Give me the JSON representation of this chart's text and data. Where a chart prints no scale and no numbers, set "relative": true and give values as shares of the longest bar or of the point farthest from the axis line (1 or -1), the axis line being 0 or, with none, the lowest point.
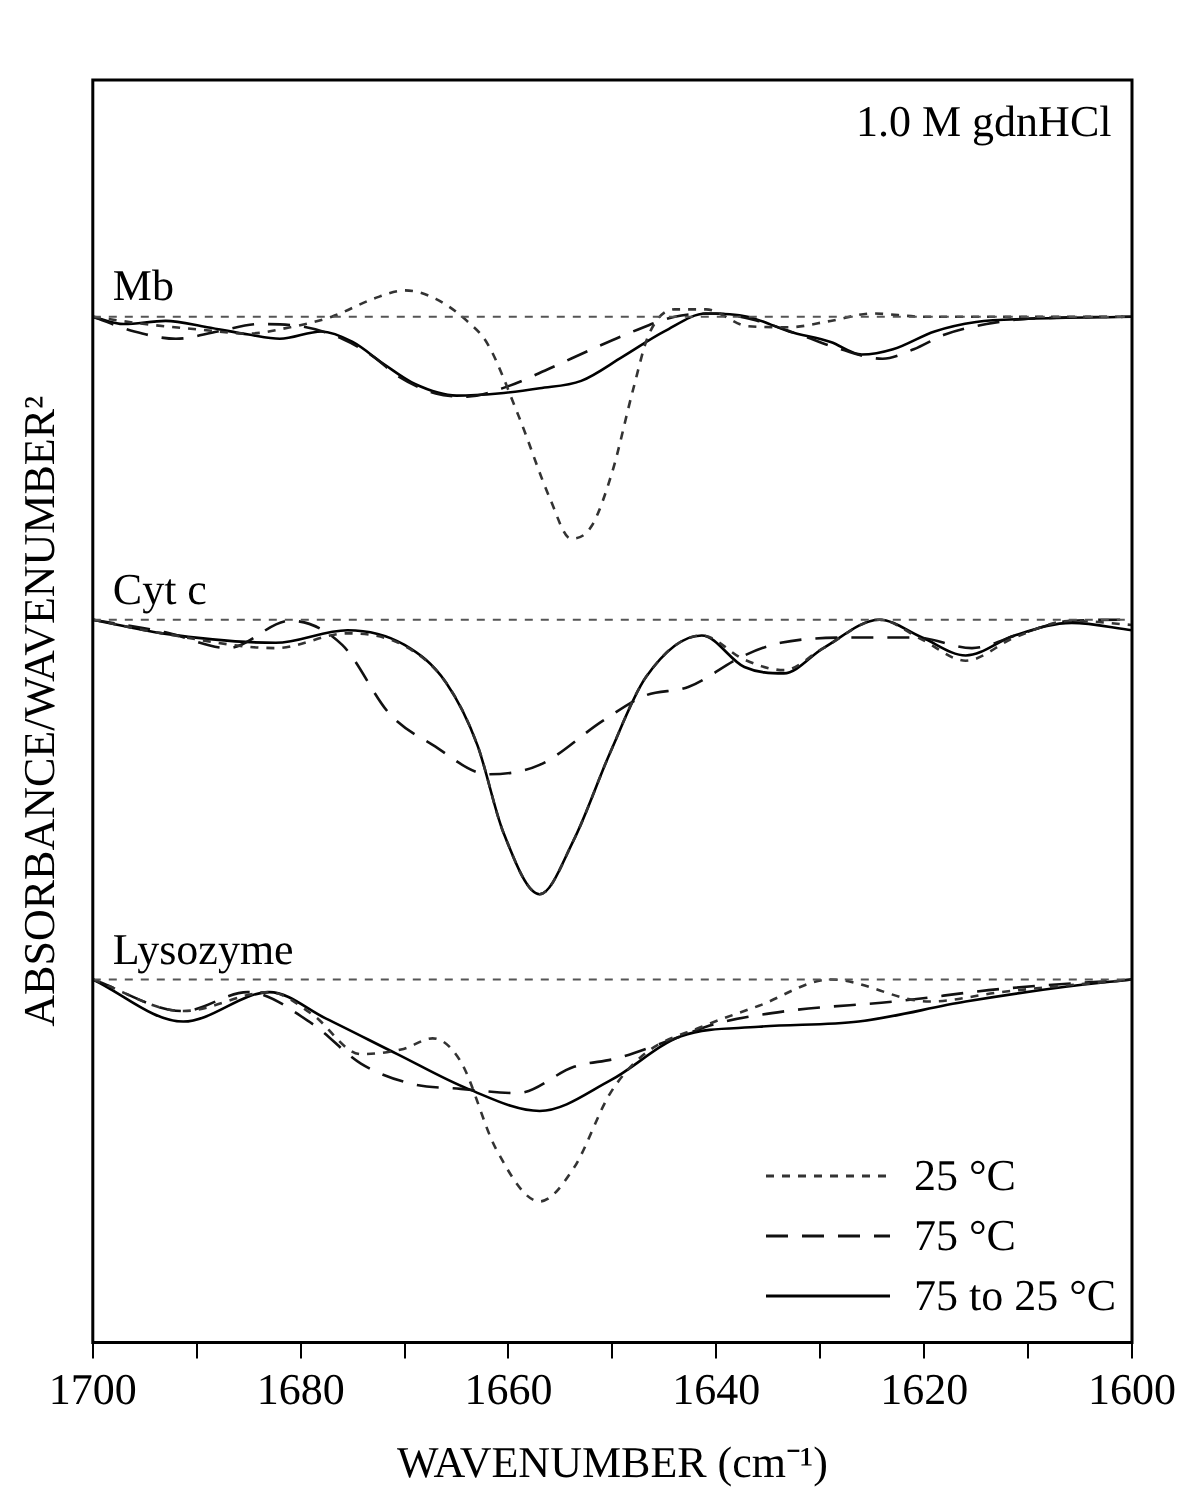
{
  "chart_data": {
    "type": "line",
    "relative": true,
    "xlabel": "WAVENUMBER (cm⁻¹)",
    "ylabel": "ABSORBANCE/WAVENUMBER²",
    "xlim": [
      1700,
      1600
    ],
    "xticks": [
      1700,
      {
        "value": 1690,
        "label": null
      },
      1680,
      {
        "value": 1670,
        "label": null
      },
      1660,
      {
        "value": 1650,
        "label": null
      },
      1640,
      {
        "value": 1630,
        "label": null
      },
      1620,
      {
        "value": 1610,
        "label": null
      },
      1600
    ],
    "legend": "bottom right",
    "marker": "none",
    "annotations": [
      "1.0 M gdnHCl"
    ],
    "ref_lines": [
      {
        "axis": "y",
        "value": 0.975,
        "label": "Mb",
        "line_style": "dotted",
        "color": "#555555"
      },
      {
        "axis": "y",
        "value": 0.687,
        "label": "Cyt c",
        "line_style": "dotted",
        "color": "#555555"
      },
      {
        "axis": "y",
        "value": 0.345,
        "label": "Lysozyme",
        "line_style": "dotted",
        "color": "#555555"
      }
    ],
    "series": [
      {
        "name": "25 °C",
        "color": "#333333",
        "line_style": "dotted",
        "x": [
          1700,
          1695,
          1690,
          1685,
          1681,
          1677,
          1673,
          1670,
          1667,
          1664,
          1662,
          1659,
          1656,
          1654,
          1652,
          1650,
          1648,
          1646.5,
          1644,
          1641,
          1637,
          1633,
          1629,
          1625,
          1620,
          1610,
          1600
        ],
        "values": [
          0.975,
          0.968,
          0.963,
          0.959,
          0.965,
          0.975,
          0.992,
          1.0,
          0.992,
          0.971,
          0.949,
          0.88,
          0.802,
          0.764,
          0.776,
          0.828,
          0.906,
          0.958,
          0.982,
          0.982,
          0.966,
          0.965,
          0.971,
          0.978,
          0.975,
          0.975,
          0.975
        ]
      },
      {
        "name": "75 °C",
        "color": "#111111",
        "line_style": "dashed",
        "x": [
          1700,
          1696,
          1692,
          1688,
          1684,
          1680,
          1676,
          1673,
          1670.7,
          1667,
          1664,
          1660,
          1656,
          1652,
          1648,
          1644,
          1640,
          1636,
          1632,
          1628,
          1624,
          1621,
          1618,
          1614,
          1610,
          1600
        ],
        "values": [
          0.975,
          0.961,
          0.954,
          0.961,
          0.968,
          0.966,
          0.954,
          0.937,
          0.919,
          0.902,
          0.899,
          0.909,
          0.926,
          0.944,
          0.961,
          0.975,
          0.978,
          0.971,
          0.958,
          0.944,
          0.935,
          0.944,
          0.958,
          0.968,
          0.973,
          0.975
        ]
      },
      {
        "name": "75 to 25 °C",
        "color": "#000000",
        "line_style": "solid",
        "x": [
          1700,
          1697,
          1693,
          1689,
          1685,
          1682,
          1678,
          1675,
          1672,
          1669,
          1665,
          1661,
          1657,
          1653,
          1649,
          1645,
          1641,
          1637,
          1633,
          1629,
          1626,
          1623,
          1619,
          1615,
          1610,
          1600
        ],
        "values": [
          0.975,
          0.968,
          0.971,
          0.965,
          0.958,
          0.954,
          0.961,
          0.951,
          0.93,
          0.911,
          0.9,
          0.902,
          0.907,
          0.914,
          0.937,
          0.961,
          0.978,
          0.975,
          0.961,
          0.951,
          0.939,
          0.944,
          0.961,
          0.97,
          0.973,
          0.975
        ]
      },
      {
        "color": "#333333",
        "line_style": "dotted",
        "x": [
          1700,
          1693.3,
          1682.4,
          1675.5,
          1670,
          1666,
          1663,
          1660.5,
          1657,
          1653.7,
          1650.2,
          1646.8,
          1641.4,
          1637.3,
          1633.5,
          1629.7,
          1624.3,
          1620.2,
          1616,
          1611.3,
          1605.8,
          1600
        ],
        "values": [
          0.687,
          0.674,
          0.66,
          0.674,
          0.662,
          0.627,
          0.568,
          0.485,
          0.426,
          0.478,
          0.561,
          0.632,
          0.672,
          0.649,
          0.639,
          0.66,
          0.687,
          0.668,
          0.648,
          0.67,
          0.686,
          0.682
        ]
      },
      {
        "color": "#111111",
        "line_style": "dashed",
        "x": [
          1700,
          1693,
          1687,
          1681,
          1676,
          1671.4,
          1667.3,
          1661.9,
          1657,
          1650.9,
          1646.8,
          1642.7,
          1637.3,
          1633.8,
          1626.3,
          1620.8,
          1615.4,
          1610.6,
          1605.8,
          1600
        ],
        "values": [
          0.687,
          0.675,
          0.66,
          0.686,
          0.663,
          0.597,
          0.568,
          0.54,
          0.549,
          0.591,
          0.615,
          0.623,
          0.653,
          0.665,
          0.67,
          0.67,
          0.66,
          0.674,
          0.686,
          0.687
        ]
      },
      {
        "color": "#000000",
        "line_style": "solid",
        "x": [
          1700,
          1693.3,
          1682.4,
          1675.5,
          1670,
          1666,
          1663,
          1660.5,
          1657,
          1653.7,
          1650.2,
          1646.8,
          1641.4,
          1637.3,
          1633.5,
          1629.7,
          1624.3,
          1620.2,
          1616,
          1611.3,
          1605.8,
          1600
        ],
        "values": [
          0.687,
          0.674,
          0.665,
          0.677,
          0.663,
          0.627,
          0.568,
          0.485,
          0.426,
          0.478,
          0.561,
          0.632,
          0.672,
          0.642,
          0.636,
          0.66,
          0.687,
          0.67,
          0.653,
          0.672,
          0.684,
          0.677
        ]
      },
      {
        "color": "#333333",
        "line_style": "dotted",
        "x": [
          1700,
          1691.3,
          1683,
          1678.9,
          1674.2,
          1670.1,
          1667.3,
          1664.6,
          1661.2,
          1657,
          1653.7,
          1650.2,
          1646.8,
          1641.4,
          1635.9,
          1629,
          1619.5,
          1612.6,
          1600
        ],
        "values": [
          0.345,
          0.315,
          0.333,
          0.312,
          0.274,
          0.279,
          0.289,
          0.267,
          0.184,
          0.134,
          0.166,
          0.237,
          0.275,
          0.3,
          0.32,
          0.345,
          0.324,
          0.333,
          0.345
        ]
      },
      {
        "color": "#111111",
        "line_style": "dashed",
        "x": [
          1700,
          1691.3,
          1685.1,
          1678.9,
          1674.2,
          1669.4,
          1664.6,
          1659.1,
          1653.7,
          1649.6,
          1644.8,
          1640,
          1633.2,
          1622.9,
          1612.6,
          1600
        ],
        "values": [
          0.345,
          0.315,
          0.333,
          0.303,
          0.265,
          0.246,
          0.241,
          0.237,
          0.262,
          0.27,
          0.286,
          0.303,
          0.315,
          0.324,
          0.336,
          0.345
        ]
      },
      {
        "color": "#000000",
        "line_style": "solid",
        "x": [
          1700,
          1691.3,
          1683,
          1677.6,
          1670.7,
          1663.9,
          1657,
          1650.2,
          1643.4,
          1635.9,
          1626.3,
          1616,
          1606.4,
          1600
        ],
        "values": [
          0.345,
          0.305,
          0.333,
          0.308,
          0.274,
          0.241,
          0.22,
          0.249,
          0.291,
          0.3,
          0.305,
          0.324,
          0.338,
          0.345
        ]
      }
    ]
  }
}
